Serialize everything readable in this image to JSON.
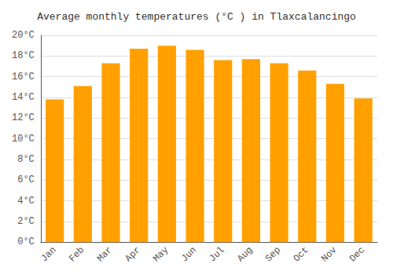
{
  "chart_data": {
    "type": "bar",
    "title": "Average monthly temperatures (°C ) in Tlaxcalancingo",
    "categories": [
      "Jan",
      "Feb",
      "Mar",
      "Apr",
      "May",
      "Jun",
      "Jul",
      "Aug",
      "Sep",
      "Oct",
      "Nov",
      "Dec"
    ],
    "values": [
      13.8,
      15.1,
      17.3,
      18.7,
      19.0,
      18.6,
      17.6,
      17.7,
      17.3,
      16.6,
      15.3,
      13.9
    ],
    "color": "#FFA000",
    "ylim": [
      0,
      20
    ],
    "yticks": [
      {
        "value": 0,
        "label": "0°C"
      },
      {
        "value": 2,
        "label": "2°C"
      },
      {
        "value": 4,
        "label": "4°C"
      },
      {
        "value": 6,
        "label": "6°C"
      },
      {
        "value": 8,
        "label": "8°C"
      },
      {
        "value": 10,
        "label": "10°C"
      },
      {
        "value": 12,
        "label": "12°C"
      },
      {
        "value": 14,
        "label": "14°C"
      },
      {
        "value": 16,
        "label": "16°C"
      },
      {
        "value": 18,
        "label": "18°C"
      },
      {
        "value": 20,
        "label": "20°C"
      }
    ],
    "grid": true
  }
}
